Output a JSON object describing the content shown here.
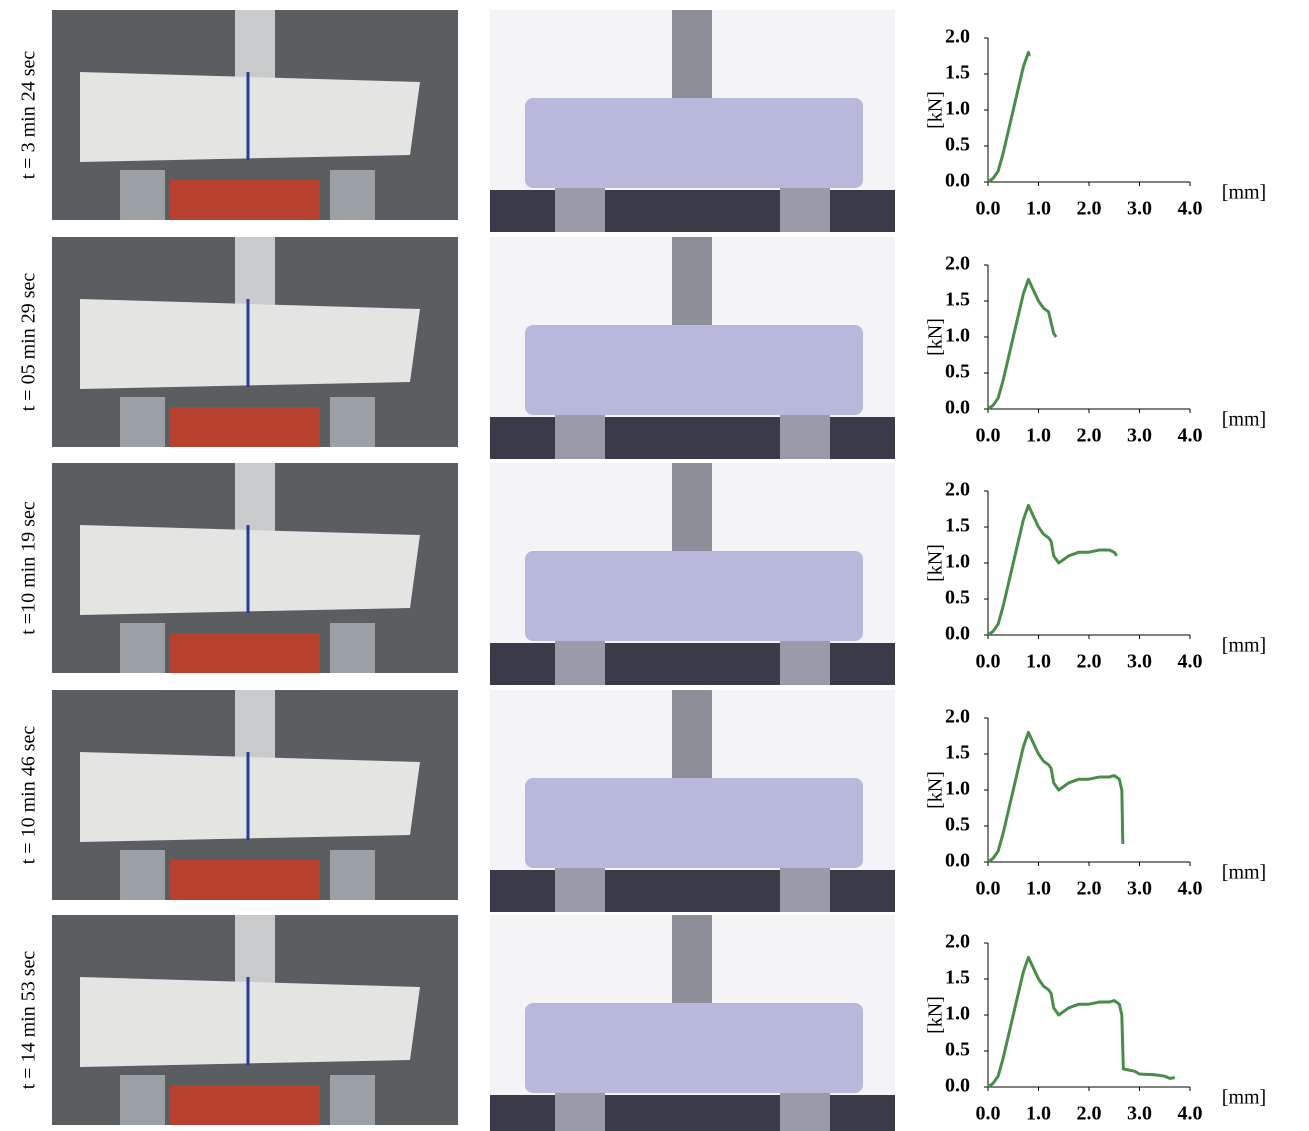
{
  "row_labels": [
    "t = 3 min 24 sec",
    "t = 05 min 29 sec",
    "t =10 min 19 sec",
    "t = 10 min 46 sec",
    "t = 14 min 53 sec"
  ],
  "chart_data": [
    {
      "type": "line",
      "xlabel": "[mm]",
      "ylabel": "[kN]",
      "color": "#4a8c4a",
      "x": [
        0,
        0.1,
        0.2,
        0.3,
        0.4,
        0.5,
        0.6,
        0.7,
        0.8,
        0.82
      ],
      "values": [
        0,
        0.05,
        0.15,
        0.4,
        0.7,
        1.0,
        1.3,
        1.6,
        1.8,
        1.75
      ],
      "xlim": [
        0,
        4
      ],
      "ylim": [
        0,
        2
      ],
      "xticks": [
        {
          "value": 0,
          "label": "0.0"
        },
        {
          "value": 1,
          "label": "1.0"
        },
        {
          "value": 2,
          "label": "2.0"
        },
        {
          "value": 3,
          "label": "3.0"
        },
        {
          "value": 4,
          "label": "4.0"
        }
      ],
      "yticks": [
        {
          "value": 0,
          "label": "0.0"
        },
        0.5,
        {
          "value": 1,
          "label": "1.0"
        },
        1.5,
        {
          "value": 2,
          "label": "2.0"
        }
      ]
    },
    {
      "type": "line",
      "xlabel": "[mm]",
      "ylabel": "[kN]",
      "color": "#4a8c4a",
      "x": [
        0,
        0.1,
        0.2,
        0.3,
        0.4,
        0.5,
        0.6,
        0.7,
        0.8,
        0.9,
        1.0,
        1.1,
        1.2,
        1.25,
        1.3,
        1.35
      ],
      "values": [
        0,
        0.05,
        0.15,
        0.4,
        0.7,
        1.0,
        1.3,
        1.6,
        1.8,
        1.65,
        1.5,
        1.4,
        1.35,
        1.2,
        1.05,
        1.0
      ],
      "xlim": [
        0,
        4
      ],
      "ylim": [
        0,
        2
      ],
      "xticks": [
        {
          "value": 0,
          "label": "0.0"
        },
        {
          "value": 1,
          "label": "1.0"
        },
        {
          "value": 2,
          "label": "2.0"
        },
        {
          "value": 3,
          "label": "3.0"
        },
        {
          "value": 4,
          "label": "4.0"
        }
      ],
      "yticks": [
        {
          "value": 0,
          "label": "0.0"
        },
        0.5,
        {
          "value": 1,
          "label": "1.0"
        },
        1.5,
        {
          "value": 2,
          "label": "2.0"
        }
      ]
    },
    {
      "type": "line",
      "xlabel": "[mm]",
      "ylabel": "[kN]",
      "color": "#4a8c4a",
      "x": [
        0,
        0.1,
        0.2,
        0.3,
        0.4,
        0.5,
        0.6,
        0.7,
        0.8,
        0.9,
        1.0,
        1.1,
        1.2,
        1.25,
        1.3,
        1.4,
        1.6,
        1.8,
        2.0,
        2.2,
        2.4,
        2.5,
        2.55
      ],
      "values": [
        0,
        0.05,
        0.15,
        0.4,
        0.7,
        1.0,
        1.3,
        1.6,
        1.8,
        1.65,
        1.5,
        1.4,
        1.35,
        1.3,
        1.1,
        1.0,
        1.1,
        1.15,
        1.15,
        1.18,
        1.18,
        1.15,
        1.1
      ],
      "xlim": [
        0,
        4
      ],
      "ylim": [
        0,
        2
      ],
      "xticks": [
        {
          "value": 0,
          "label": "0.0"
        },
        {
          "value": 1,
          "label": "1.0"
        },
        {
          "value": 2,
          "label": "2.0"
        },
        {
          "value": 3,
          "label": "3.0"
        },
        {
          "value": 4,
          "label": "4.0"
        }
      ],
      "yticks": [
        {
          "value": 0,
          "label": "0.0"
        },
        0.5,
        {
          "value": 1,
          "label": "1.0"
        },
        1.5,
        {
          "value": 2,
          "label": "2.0"
        }
      ]
    },
    {
      "type": "line",
      "xlabel": "[mm]",
      "ylabel": "[kN]",
      "color": "#4a8c4a",
      "x": [
        0,
        0.1,
        0.2,
        0.3,
        0.4,
        0.5,
        0.6,
        0.7,
        0.8,
        0.9,
        1.0,
        1.1,
        1.2,
        1.25,
        1.3,
        1.4,
        1.6,
        1.8,
        2.0,
        2.2,
        2.4,
        2.5,
        2.6,
        2.65,
        2.67
      ],
      "values": [
        0,
        0.05,
        0.15,
        0.4,
        0.7,
        1.0,
        1.3,
        1.6,
        1.8,
        1.65,
        1.5,
        1.4,
        1.35,
        1.3,
        1.1,
        1.0,
        1.1,
        1.15,
        1.15,
        1.18,
        1.18,
        1.2,
        1.15,
        1.0,
        0.25
      ],
      "xlim": [
        0,
        4
      ],
      "ylim": [
        0,
        2
      ],
      "xticks": [
        {
          "value": 0,
          "label": "0.0"
        },
        {
          "value": 1,
          "label": "1.0"
        },
        {
          "value": 2,
          "label": "2.0"
        },
        {
          "value": 3,
          "label": "3.0"
        },
        {
          "value": 4,
          "label": "4.0"
        }
      ],
      "yticks": [
        {
          "value": 0,
          "label": "0.0"
        },
        0.5,
        {
          "value": 1,
          "label": "1.0"
        },
        1.5,
        {
          "value": 2,
          "label": "2.0"
        }
      ]
    },
    {
      "type": "line",
      "xlabel": "[mm]",
      "ylabel": "[kN]",
      "color": "#4a8c4a",
      "x": [
        0,
        0.1,
        0.2,
        0.3,
        0.4,
        0.5,
        0.6,
        0.7,
        0.8,
        0.9,
        1.0,
        1.1,
        1.2,
        1.25,
        1.3,
        1.4,
        1.6,
        1.8,
        2.0,
        2.2,
        2.4,
        2.5,
        2.6,
        2.65,
        2.68,
        2.9,
        3.0,
        3.3,
        3.5,
        3.6,
        3.7
      ],
      "values": [
        0,
        0.05,
        0.15,
        0.4,
        0.7,
        1.0,
        1.3,
        1.6,
        1.8,
        1.65,
        1.5,
        1.4,
        1.35,
        1.3,
        1.1,
        1.0,
        1.1,
        1.15,
        1.15,
        1.18,
        1.18,
        1.2,
        1.15,
        1.0,
        0.25,
        0.22,
        0.18,
        0.17,
        0.15,
        0.12,
        0.13
      ],
      "xlim": [
        0,
        4
      ],
      "ylim": [
        0,
        2
      ],
      "xticks": [
        {
          "value": 0,
          "label": "0.0"
        },
        {
          "value": 1,
          "label": "1.0"
        },
        {
          "value": 2,
          "label": "2.0"
        },
        {
          "value": 3,
          "label": "3.0"
        },
        {
          "value": 4,
          "label": "4.0"
        }
      ],
      "yticks": [
        {
          "value": 0,
          "label": "0.0"
        },
        0.5,
        {
          "value": 1,
          "label": "1.0"
        },
        1.5,
        {
          "value": 2,
          "label": "2.0"
        }
      ]
    }
  ]
}
